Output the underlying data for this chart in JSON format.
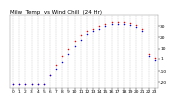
{
  "title": "Milw  Temp  vs Wind Chill  (24 Hr)",
  "hours": [
    0,
    1,
    2,
    3,
    4,
    5,
    6,
    7,
    8,
    9,
    10,
    11,
    12,
    13,
    14,
    15,
    16,
    17,
    18,
    19,
    20,
    21,
    22,
    23
  ],
  "outdoor_temp": [
    -22,
    -22,
    -22,
    -22,
    -22,
    -22,
    -14,
    -5,
    3,
    10,
    17,
    22,
    26,
    28,
    30,
    32,
    34,
    34,
    34,
    33,
    31,
    28,
    5,
    2
  ],
  "wind_chill": [
    -22,
    -22,
    -22,
    -22,
    -22,
    -22,
    -14,
    -8,
    -2,
    5,
    12,
    18,
    23,
    26,
    28,
    30,
    32,
    32,
    32,
    31,
    29,
    26,
    3,
    0
  ],
  "temp_color": "#ff0000",
  "wind_chill_color": "#0000ff",
  "background_color": "#ffffff",
  "grid_color": "#aaaaaa",
  "ylim": [
    -25,
    40
  ],
  "xlim": [
    -0.5,
    23.5
  ],
  "title_fontsize": 4.0,
  "tick_fontsize": 3.2,
  "ytick_labels": [
    "30",
    "20",
    "10",
    "1",
    "-10",
    "-20"
  ],
  "ytick_values": [
    30,
    20,
    10,
    1,
    -10,
    -20
  ],
  "marker_size": 1.2,
  "line_width": 0.0,
  "dot_only": true
}
